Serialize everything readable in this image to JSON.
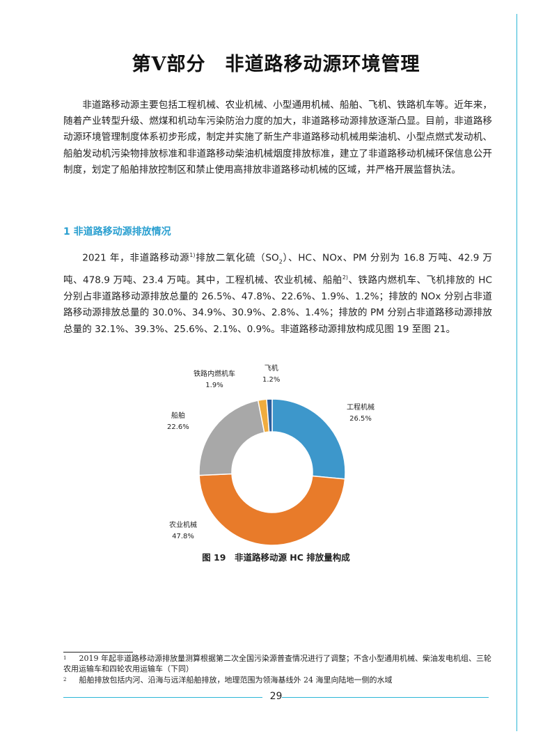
{
  "title": "第Ⅴ部分　非道路移动源环境管理",
  "intro": "非道路移动源主要包括工程机械、农业机械、小型通用机械、船舶、飞机、铁路机车等。近年来，随着产业转型升级、燃煤和机动车污染防治力度的加大，非道路移动源排放逐渐凸显。目前，非道路移动源环境管理制度体系初步形成，制定并实施了新生产非道路移动机械用柴油机、小型点燃式发动机、船舶发动机污染物排放标准和非道路移动柴油机械烟度排放标准，建立了非道路移动机械环保信息公开制度，划定了船舶排放控制区和禁止使用高排放非道路移动机械的区域，并严格开展监督执法。",
  "section_heading": "1 非道路移动源排放情况",
  "para2": {
    "a": "2021 年，非道路移动源",
    "sup1": "1)",
    "b": "排放二氧化硫（SO",
    "sub": "2",
    "c": "）、HC、NOx、PM 分别为 16.8 万吨、42.9 万吨、478.9 万吨、23.4 万吨。其中，工程机械、农业机械、船舶",
    "sup2": "2)",
    "d": "、铁路内燃机车、飞机排放的 HC 分别占非道路移动源排放总量的 26.5%、47.8%、22.6%、1.9%、1.2%；排放的 NOx 分别占非道路移动源排放总量的 30.0%、34.9%、30.9%、2.8%、1.4%；排放的 PM 分别占非道路移动源排放总量的 32.1%、39.3%、25.6%、2.1%、0.9%。非道路移动源排放构成见图 19 至图 21。"
  },
  "chart_data": {
    "type": "pie",
    "donut": true,
    "title": "图 19　非道路移动源 HC 排放量构成",
    "categories": [
      "工程机械",
      "农业机械",
      "船舶",
      "铁路内燃机车",
      "飞机"
    ],
    "values": [
      26.5,
      47.8,
      22.6,
      1.9,
      1.2
    ],
    "labels": [
      "26.5%",
      "47.8%",
      "22.6%",
      "1.9%",
      "1.2%"
    ],
    "colors": [
      "#3d97cb",
      "#e87b2a",
      "#a8a8a8",
      "#f0ac3e",
      "#2c5f9e"
    ],
    "start": "top",
    "direction": "clockwise"
  },
  "footnotes": [
    {
      "num": "1",
      "text": "2019 年起非道路移动源排放量测算根据第二次全国污染源普查情况进行了调整；不含小型通用机械、柴油发电机组、三轮农用运输车和四轮农用运输车（下同）"
    },
    {
      "num": "2",
      "text": "船舶排放包括内河、沿海与远洋船舶排放，地理范围为领海基线外 24 海里向陆地一侧的水域"
    }
  ],
  "page_number": "29"
}
